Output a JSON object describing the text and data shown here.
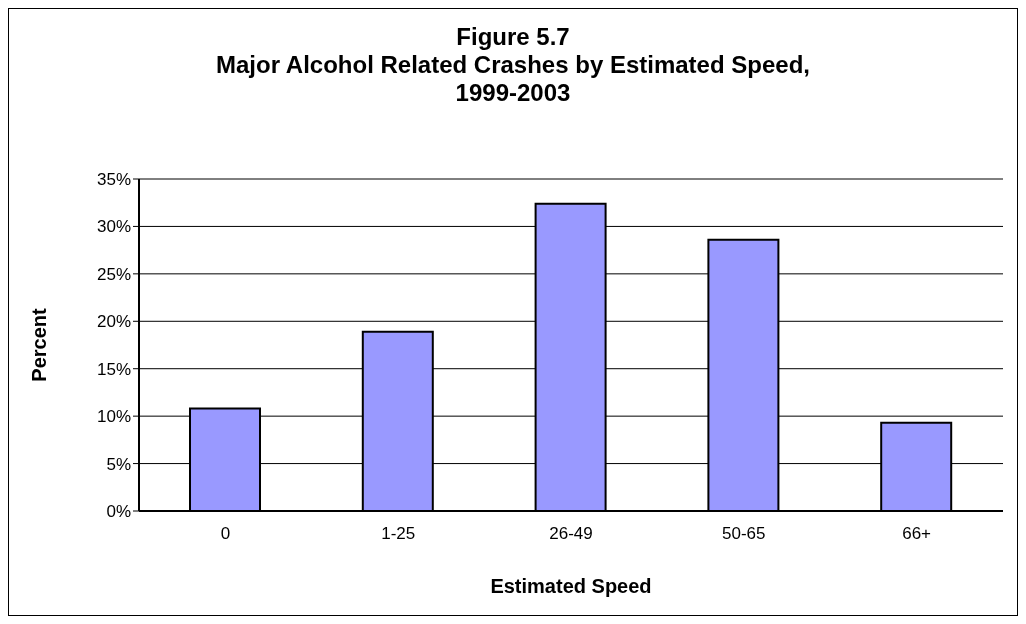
{
  "chart_data": {
    "type": "bar",
    "title": "Figure 5.7\nMajor Alcohol Related Crashes by Estimated Speed,\n1999-2003",
    "xlabel": "Estimated Speed",
    "ylabel": "Percent",
    "categories": [
      "0",
      "1-25",
      "26-49",
      "50-65",
      "66+"
    ],
    "values": [
      10.8,
      18.9,
      32.4,
      28.6,
      9.3
    ],
    "color": "#9999ff",
    "ylim": [
      0,
      35
    ],
    "yticks": [
      {
        "value": 0,
        "label": "0%"
      },
      {
        "value": 5,
        "label": "5%"
      },
      {
        "value": 10,
        "label": "10%"
      },
      {
        "value": 15,
        "label": "15%"
      },
      {
        "value": 20,
        "label": "20%"
      },
      {
        "value": 25,
        "label": "25%"
      },
      {
        "value": 30,
        "label": "30%"
      },
      {
        "value": 35,
        "label": "35%"
      }
    ],
    "grid": "y",
    "legend": false
  }
}
